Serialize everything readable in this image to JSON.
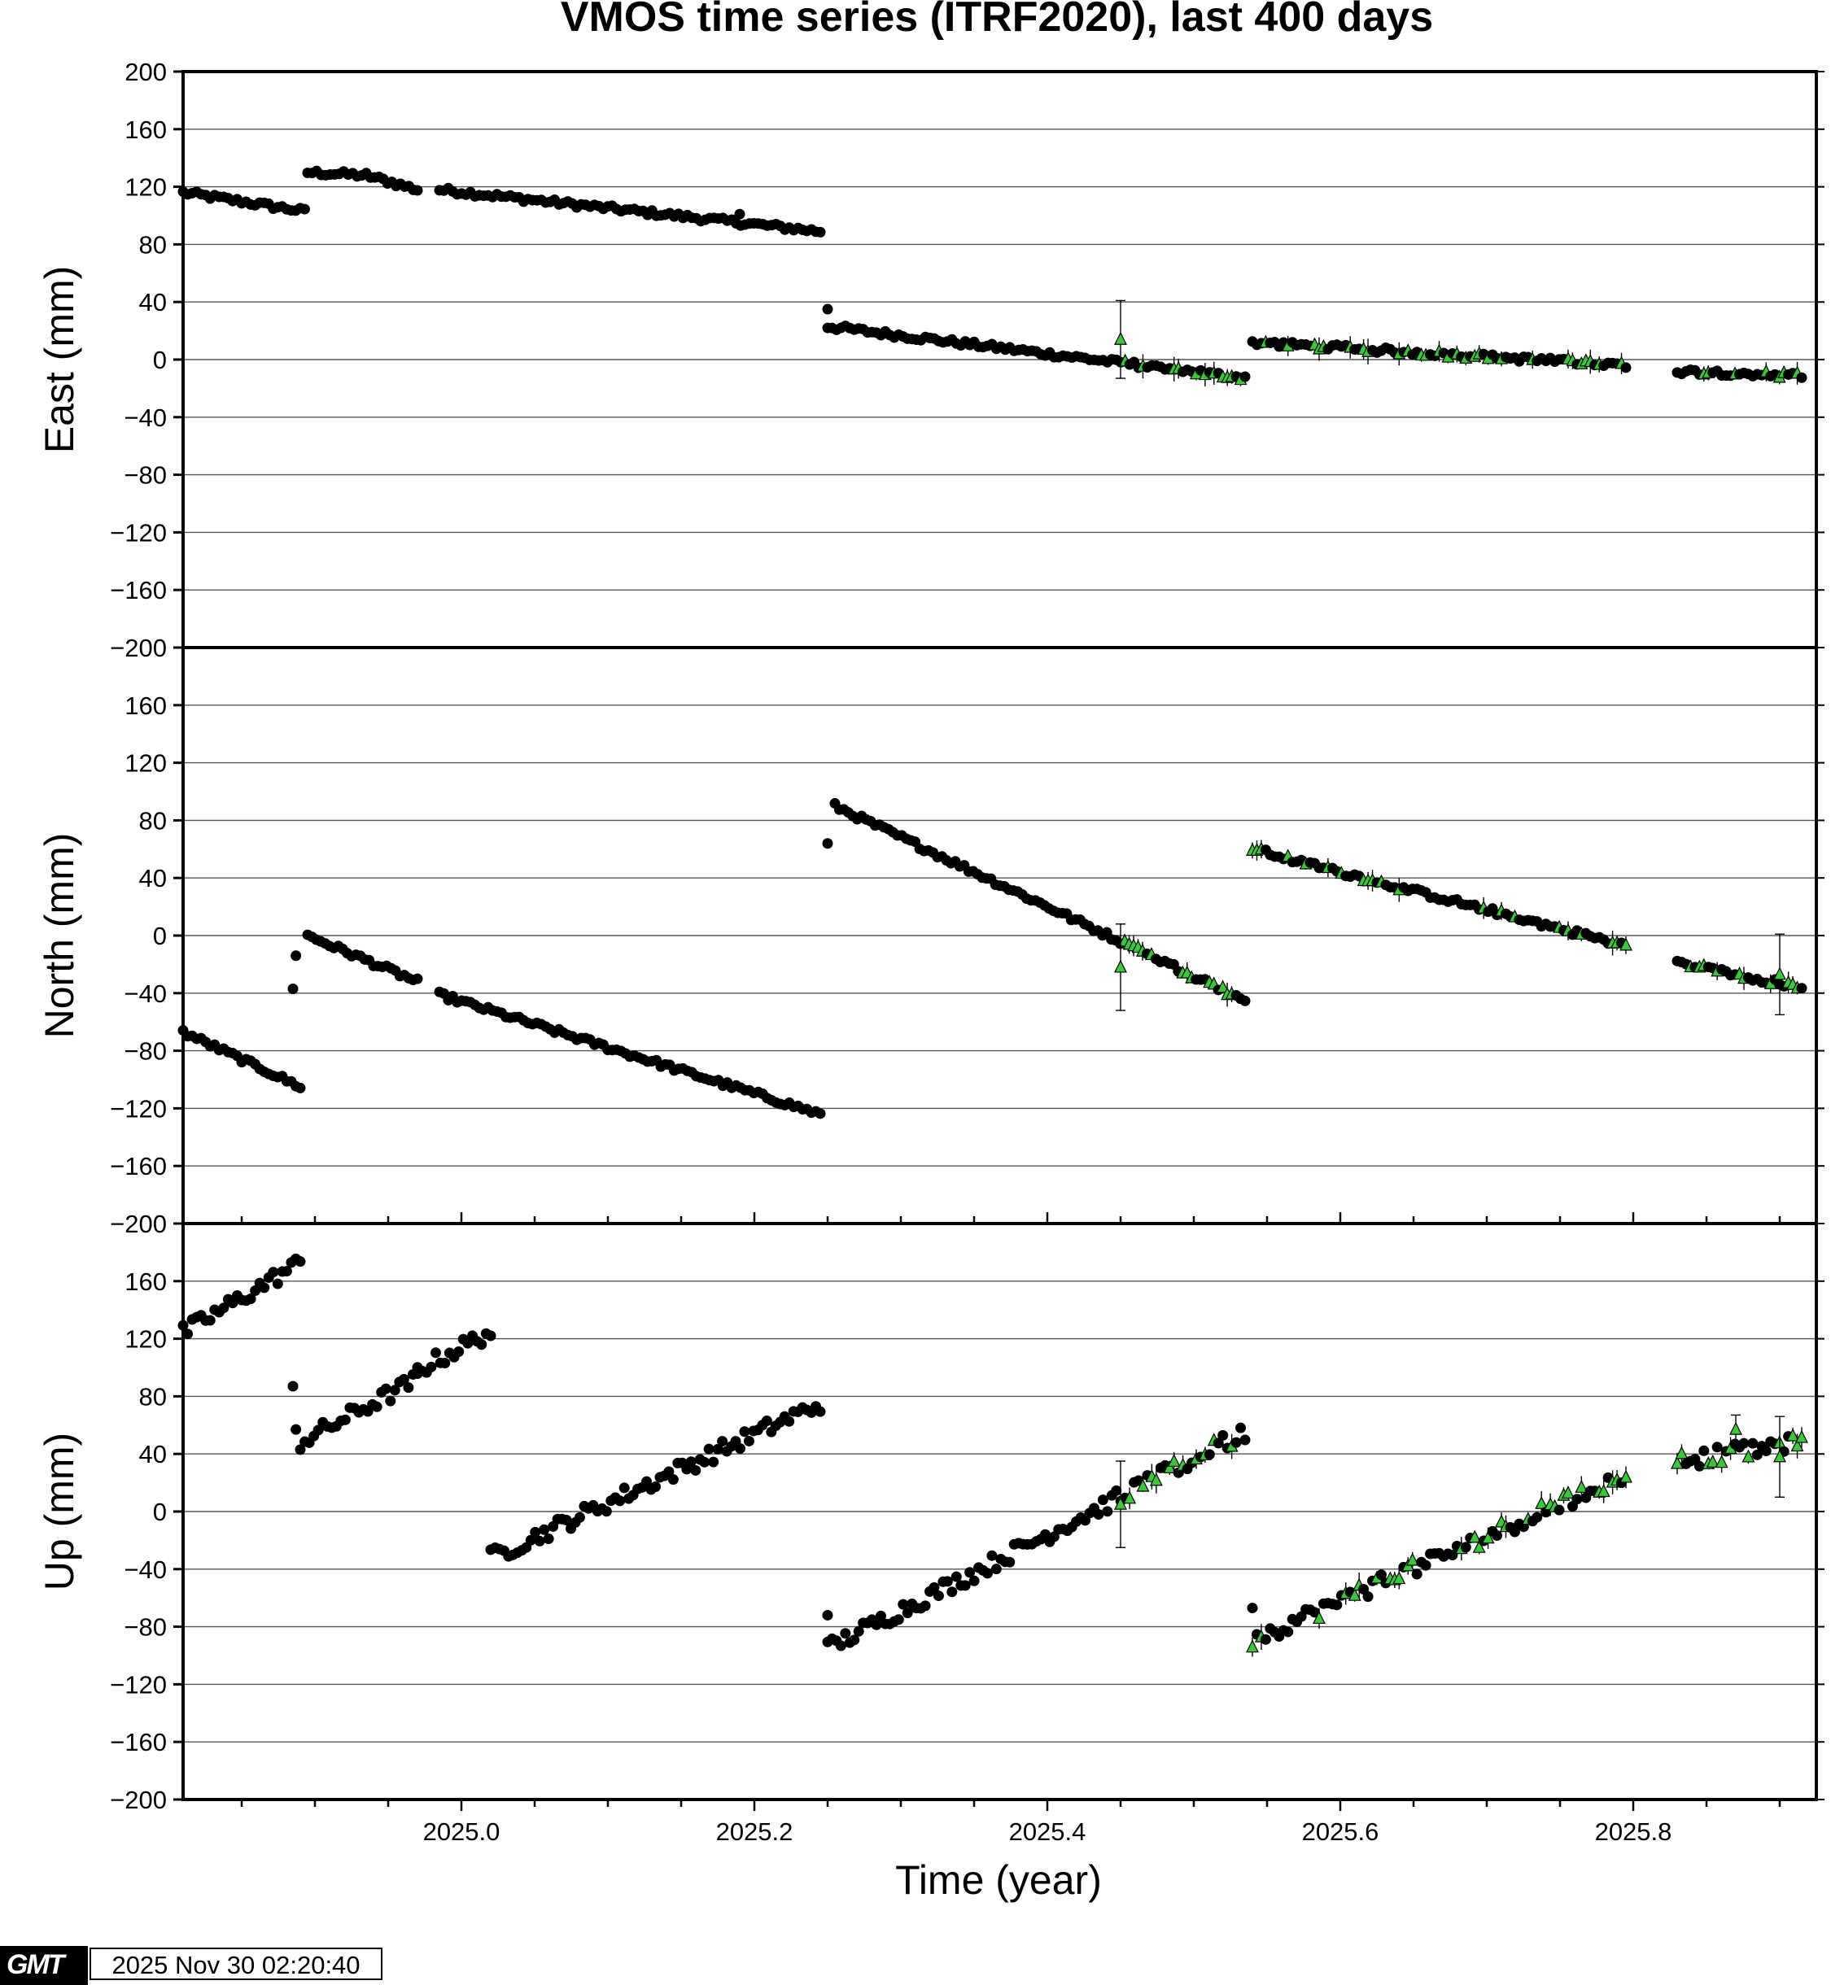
{
  "chart_data": {
    "type": "scatter",
    "title": "VMOS time series (ITRF2020), last 400 days",
    "xlabel": "Time (year)",
    "xlim": [
      2024.81,
      2025.925
    ],
    "x_ticks": [
      "2025.0",
      "2025.2",
      "2025.4",
      "2025.6",
      "2025.8"
    ],
    "grid": true,
    "marker_colors": {
      "primary": "#000000",
      "secondary": "#33cc33"
    },
    "panels": [
      {
        "name": "east",
        "ylabel": "East (mm)",
        "ylim": [
          -200,
          200
        ],
        "y_ticks": [
          "200",
          "160",
          "120",
          "80",
          "40",
          "0",
          "−40",
          "−80",
          "−120",
          "−160",
          "−200"
        ],
        "segments": [
          {
            "x0": 2024.81,
            "x1": 2024.893,
            "y0": 116,
            "y1": 103
          },
          {
            "x0": 2024.895,
            "x1": 2024.935,
            "y0": 130,
            "y1": 128
          },
          {
            "x0": 2024.935,
            "x1": 2024.97,
            "y0": 128,
            "y1": 118
          },
          {
            "x0": 2024.985,
            "x1": 2025.245,
            "y0": 118,
            "y1": 89
          },
          {
            "x0": 2025.25,
            "x1": 2025.535,
            "y0": 23,
            "y1": -13
          },
          {
            "x0": 2025.54,
            "x1": 2025.795,
            "y0": 12,
            "y1": -4
          },
          {
            "x0": 2025.83,
            "x1": 2025.915,
            "y0": -8,
            "y1": -11
          }
        ],
        "outliers": [
          {
            "x": 2025.25,
            "y": 35
          },
          {
            "x": 2025.45,
            "y": 14,
            "error": 27
          },
          {
            "x": 2025.19,
            "y": 101
          }
        ]
      },
      {
        "name": "north",
        "ylabel": "North (mm)",
        "ylim": [
          -200,
          200
        ],
        "y_ticks": [
          "",
          "160",
          "120",
          "80",
          "40",
          "0",
          "−40",
          "−80",
          "−120",
          "−160",
          "−200"
        ],
        "segments": [
          {
            "x0": 2024.81,
            "x1": 2024.89,
            "y0": -67,
            "y1": -105
          },
          {
            "x0": 2024.895,
            "x1": 2024.97,
            "y0": 0,
            "y1": -32
          },
          {
            "x0": 2024.985,
            "x1": 2025.245,
            "y0": -41,
            "y1": -124
          },
          {
            "x0": 2025.255,
            "x1": 2025.535,
            "y0": 90,
            "y1": -45
          },
          {
            "x0": 2025.54,
            "x1": 2025.795,
            "y0": 60,
            "y1": -7
          },
          {
            "x0": 2025.83,
            "x1": 2025.915,
            "y0": -19,
            "y1": -36
          }
        ],
        "outliers": [
          {
            "x": 2024.885,
            "y": -37
          },
          {
            "x": 2024.887,
            "y": -14
          },
          {
            "x": 2025.25,
            "y": 64
          },
          {
            "x": 2025.45,
            "y": -22,
            "error": 30
          },
          {
            "x": 2025.9,
            "y": -27,
            "error": 28
          }
        ]
      },
      {
        "name": "up",
        "ylabel": "Up (mm)",
        "ylim": [
          -200,
          200
        ],
        "y_ticks": [
          "",
          "160",
          "120",
          "80",
          "40",
          "0",
          "−40",
          "−80",
          "−120",
          "−160",
          "−200"
        ],
        "segments": [
          {
            "x0": 2024.81,
            "x1": 2024.89,
            "y0": 124,
            "y1": 173
          },
          {
            "x0": 2024.89,
            "x1": 2024.97,
            "y0": 48,
            "y1": 92
          },
          {
            "x0": 2024.97,
            "x1": 2025.02,
            "y0": 98,
            "y1": 125
          },
          {
            "x0": 2025.02,
            "x1": 2025.245,
            "y0": -32,
            "y1": 75
          },
          {
            "x0": 2025.25,
            "x1": 2025.535,
            "y0": -95,
            "y1": 55
          },
          {
            "x0": 2025.54,
            "x1": 2025.795,
            "y0": -89,
            "y1": 26
          },
          {
            "x0": 2025.83,
            "x1": 2025.915,
            "y0": 35,
            "y1": 48
          }
        ],
        "outliers": [
          {
            "x": 2024.885,
            "y": 87
          },
          {
            "x": 2024.887,
            "y": 57
          },
          {
            "x": 2025.25,
            "y": -72
          },
          {
            "x": 2025.45,
            "y": 5,
            "error": 30
          },
          {
            "x": 2025.54,
            "y": -67
          },
          {
            "x": 2025.9,
            "y": 38,
            "error": 28
          },
          {
            "x": 2025.87,
            "y": 57,
            "error": 10
          }
        ]
      }
    ]
  },
  "footer": {
    "timestamp": "2025 Nov 30 02:20:40",
    "logo_text": "GMT"
  }
}
